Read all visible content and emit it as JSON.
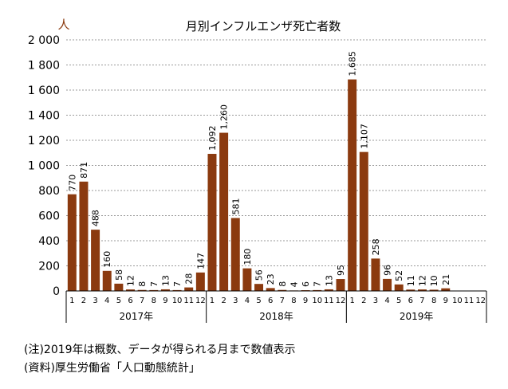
{
  "chart_data": {
    "type": "bar",
    "title": "月別インフルエンザ死亡者数",
    "ylabel": "人",
    "ylim": [
      0,
      2000
    ],
    "yticks": [
      0,
      200,
      400,
      600,
      800,
      1000,
      1200,
      1400,
      1600,
      1800,
      2000
    ],
    "ytick_labels": [
      "0",
      "200",
      "400",
      "600",
      "800",
      "1 000",
      "1 200",
      "1 400",
      "1 600",
      "1 800",
      "2 000"
    ],
    "grid": true,
    "bar_color": "#8B3A0F",
    "month_labels": [
      "1",
      "2",
      "3",
      "4",
      "5",
      "6",
      "7",
      "8",
      "9",
      "10",
      "11",
      "12"
    ],
    "groups": [
      {
        "label": "2017年",
        "values": [
          770,
          871,
          488,
          160,
          58,
          12,
          8,
          7,
          13,
          7,
          28,
          147
        ],
        "value_labels": [
          "770",
          "871",
          "488",
          "160",
          "58",
          "12",
          "8",
          "7",
          "13",
          "7",
          "28",
          "147"
        ]
      },
      {
        "label": "2018年",
        "values": [
          1092,
          1260,
          581,
          180,
          56,
          23,
          8,
          4,
          6,
          7,
          13,
          95
        ],
        "value_labels": [
          "1,092",
          "1,260",
          "581",
          "180",
          "56",
          "23",
          "8",
          "4",
          "6",
          "7",
          "13",
          "95"
        ]
      },
      {
        "label": "2019年",
        "values": [
          1685,
          1107,
          258,
          96,
          52,
          11,
          12,
          10,
          21,
          null,
          null,
          null
        ],
        "value_labels": [
          "1,685",
          "1,107",
          "258",
          "96",
          "52",
          "11",
          "12",
          "10",
          "21",
          "",
          "",
          ""
        ]
      }
    ]
  },
  "notes": {
    "line1": "(注)2019年は概数、データが得られる月まで数値表示",
    "line2": "(資料)厚生労働省「人口動態統計」"
  }
}
